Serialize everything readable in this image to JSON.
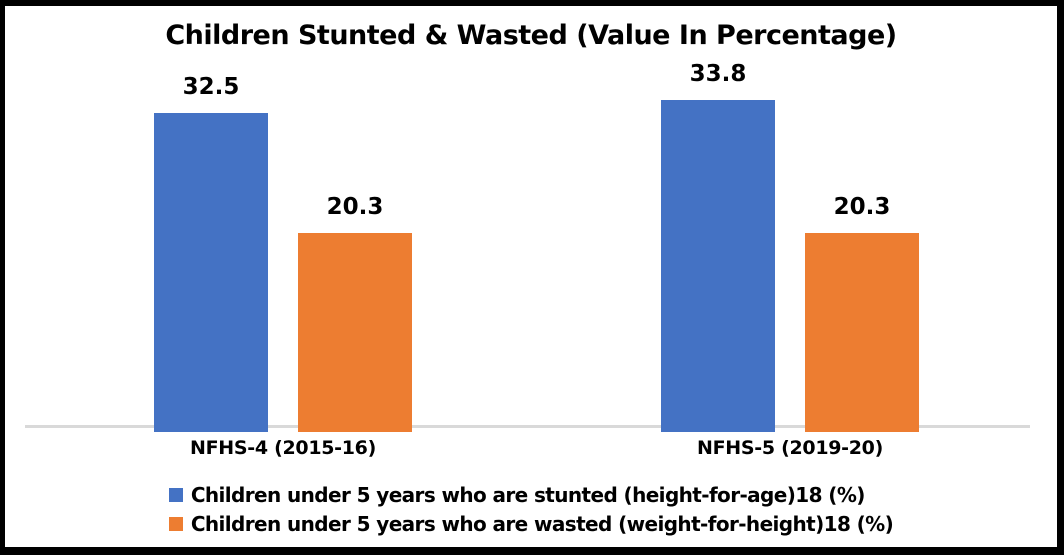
{
  "title": "Children Stunted & Wasted (Value In Percentage)",
  "colors": {
    "stunted_blue": "#4472C4",
    "wasted_orange": "#ED7D31",
    "axis_line_gray": "#D9D9D9",
    "text_black": "#000000",
    "background": "#FFFFFF",
    "frame_border": "#000000"
  },
  "chart_data": {
    "type": "bar",
    "title": "Children Stunted & Wasted (Value In Percentage)",
    "categories": [
      "NFHS-4 (2015-16)",
      "NFHS-5 (2019-20)"
    ],
    "series": [
      {
        "name": "Children under 5 years who are stunted (height-for-age)18 (%)",
        "color": "#4472C4",
        "values": [
          32.5,
          33.8
        ]
      },
      {
        "name": "Children under 5 years who are wasted (weight-for-height)18 (%)",
        "color": "#ED7D31",
        "values": [
          20.3,
          20.3
        ]
      }
    ],
    "xlabel": "",
    "ylabel": "",
    "ylim": [
      0,
      36.3
    ],
    "grid": false,
    "y_axis_visible": false,
    "data_labels": true,
    "data_label_format": "one_decimal",
    "legend_position": "bottom"
  }
}
